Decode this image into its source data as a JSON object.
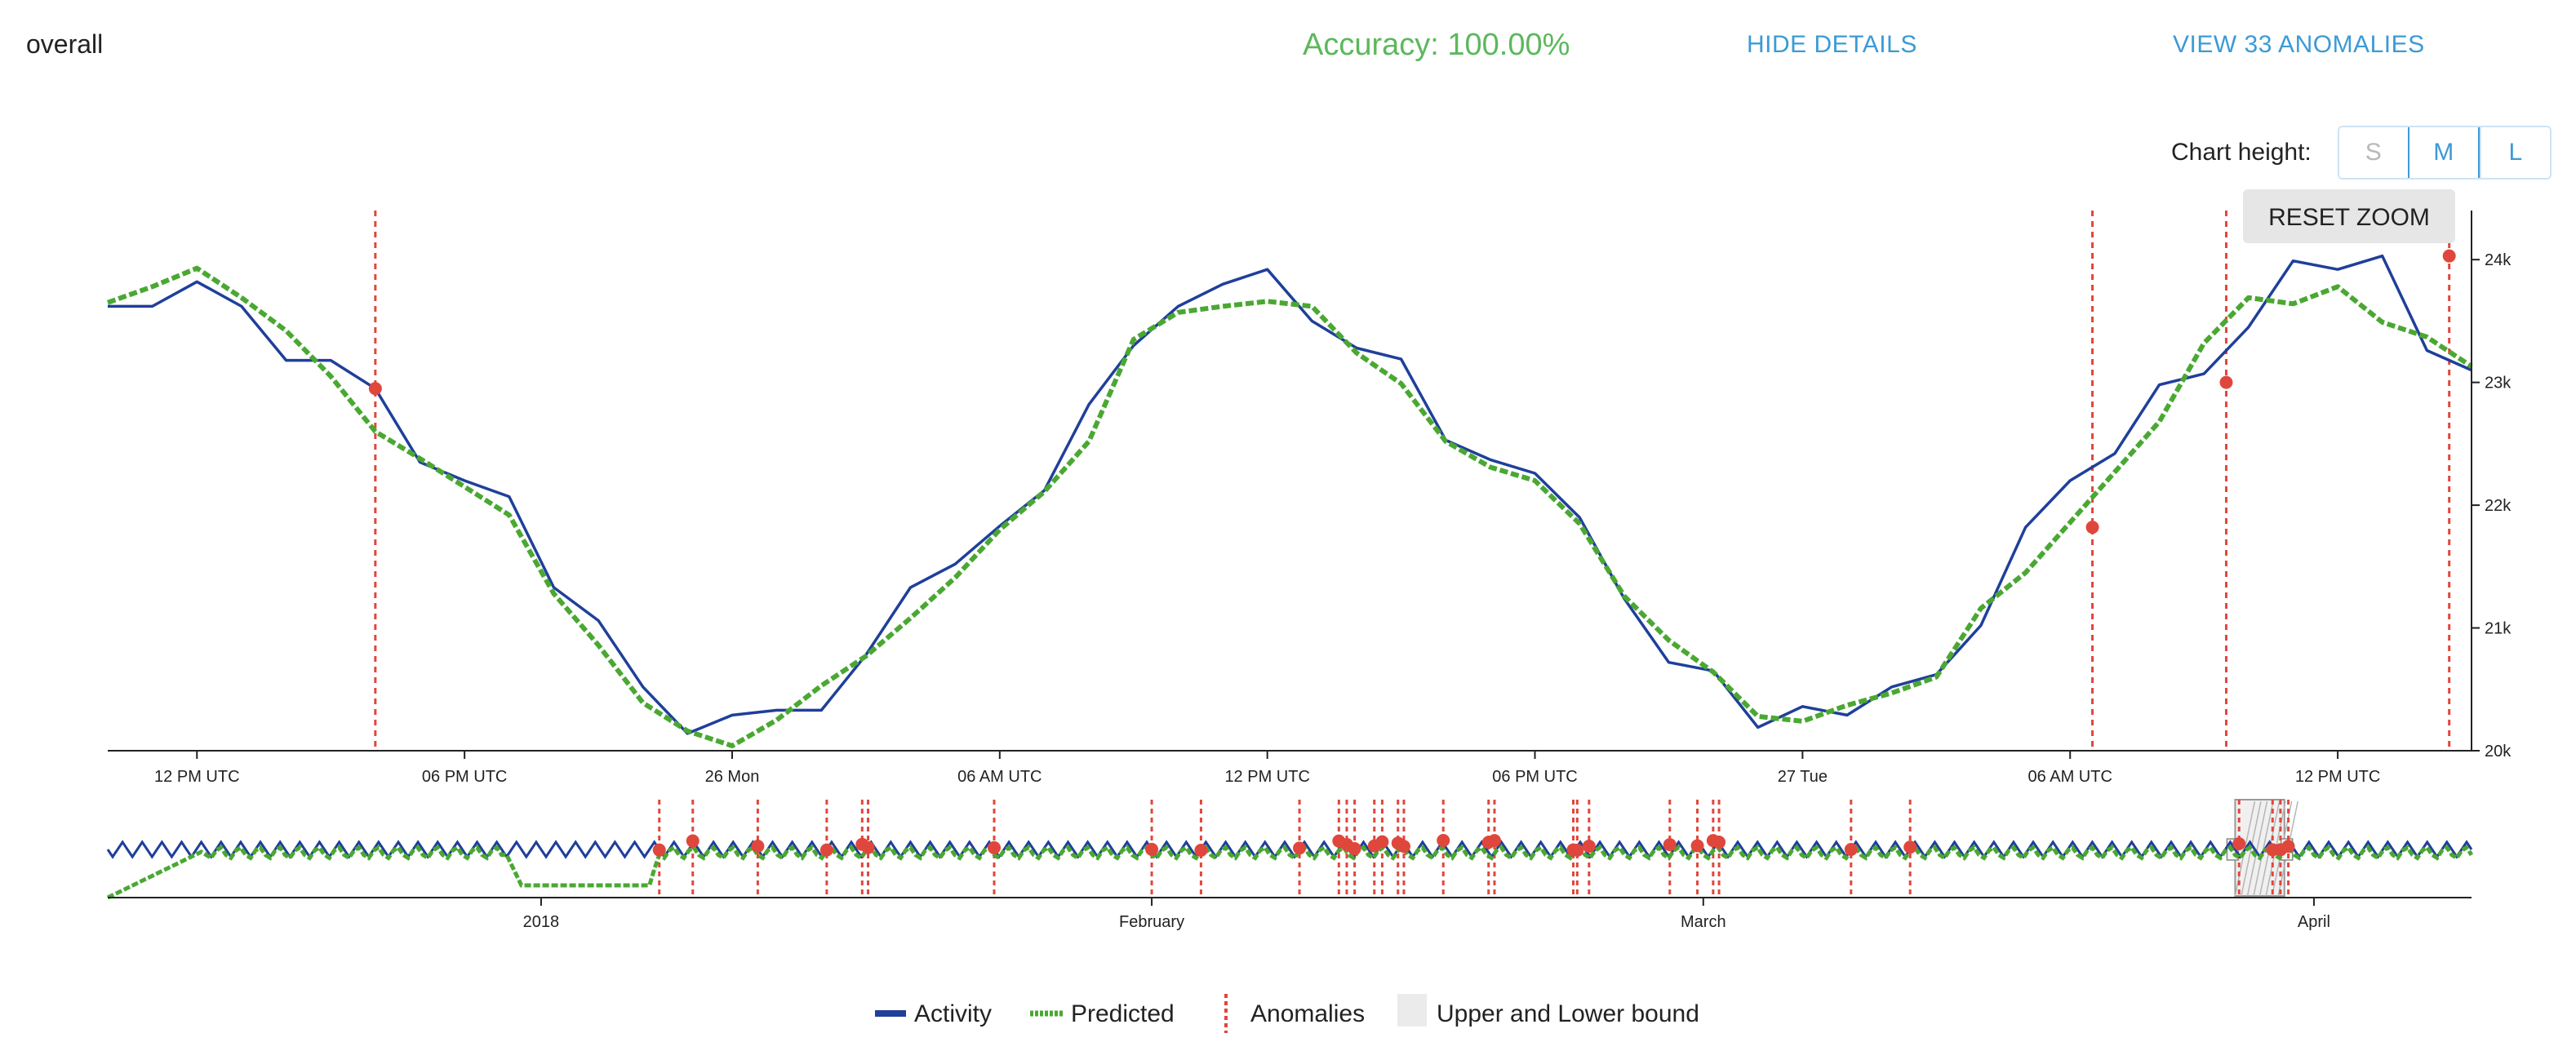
{
  "header": {
    "title": "overall",
    "accuracy": "Accuracy: 100.00%",
    "hide_details": "HIDE DETAILS",
    "view_anomalies": "VIEW 33 ANOMALIES"
  },
  "chart_height": {
    "label": "Chart height:",
    "options": [
      "S",
      "M",
      "L"
    ],
    "selected": "M"
  },
  "reset_zoom": "RESET ZOOM",
  "colors": {
    "activity": "#1f3f9a",
    "predicted": "#4aa832",
    "anomaly": "#e0473c",
    "bound": "#ebebeb"
  },
  "chart_data": {
    "type": "line",
    "x_tick_labels": [
      "12 PM UTC",
      "06 PM UTC",
      "26 Mon",
      "06 AM UTC",
      "12 PM UTC",
      "06 PM UTC",
      "27 Tue",
      "06 AM UTC",
      "12 PM UTC"
    ],
    "x_tick_hours": [
      12,
      18,
      24,
      30,
      36,
      42,
      48,
      54,
      60
    ],
    "x_range_hours": [
      10,
      63
    ],
    "y_tick_labels": [
      "20k",
      "21k",
      "22k",
      "23k",
      "24k"
    ],
    "y_ticks": [
      20000,
      21000,
      22000,
      23000,
      24000
    ],
    "ylim": [
      20000,
      24400
    ],
    "series": [
      {
        "name": "Activity",
        "x": [
          10,
          11,
          12,
          13,
          14,
          15,
          16,
          17,
          18,
          19,
          20,
          21,
          22,
          23,
          24,
          25,
          26,
          27,
          28,
          29,
          30,
          31,
          32,
          33,
          34,
          35,
          36,
          37,
          38,
          39,
          40,
          41,
          42,
          43,
          44,
          45,
          46,
          47,
          48,
          49,
          50,
          51,
          52,
          53,
          54,
          55,
          56,
          57,
          58,
          59,
          60,
          61,
          62,
          63
        ],
        "y": [
          23620,
          23620,
          23820,
          23620,
          23180,
          23180,
          22950,
          22350,
          22200,
          22070,
          21330,
          21060,
          20520,
          20140,
          20290,
          20330,
          20330,
          20780,
          21330,
          21520,
          21830,
          22120,
          22820,
          23300,
          23620,
          23800,
          23920,
          23500,
          23280,
          23190,
          22530,
          22370,
          22260,
          21900,
          21240,
          20720,
          20650,
          20190,
          20360,
          20290,
          20520,
          20620,
          21020,
          21820,
          22200,
          22420,
          22980,
          23070,
          23450,
          23990,
          23920,
          24030,
          23260,
          23100
        ]
      },
      {
        "name": "Predicted",
        "x": [
          10,
          11,
          12,
          13,
          14,
          15,
          16,
          17,
          18,
          19,
          20,
          21,
          22,
          23,
          24,
          25,
          26,
          27,
          28,
          29,
          30,
          31,
          32,
          33,
          34,
          35,
          36,
          37,
          38,
          39,
          40,
          41,
          42,
          43,
          44,
          45,
          46,
          47,
          48,
          49,
          50,
          51,
          52,
          53,
          54,
          55,
          56,
          57,
          58,
          59,
          60,
          61,
          62,
          63
        ],
        "y": [
          23650,
          23780,
          23930,
          23690,
          23420,
          23050,
          22600,
          22380,
          22150,
          21920,
          21280,
          20860,
          20390,
          20160,
          20040,
          20250,
          20530,
          20770,
          21080,
          21410,
          21800,
          22110,
          22520,
          23350,
          23570,
          23620,
          23660,
          23620,
          23240,
          22990,
          22520,
          22310,
          22200,
          21850,
          21260,
          20900,
          20640,
          20280,
          20240,
          20370,
          20470,
          20600,
          21160,
          21450,
          21860,
          22270,
          22680,
          23320,
          23690,
          23640,
          23780,
          23490,
          23370,
          23130
        ]
      }
    ],
    "anomalies": [
      {
        "x": 16,
        "y": 22950
      },
      {
        "x": 54.5,
        "y": 21820
      },
      {
        "x": 57.5,
        "y": 23000
      },
      {
        "x": 62.5,
        "y": 24030
      }
    ],
    "navigator": {
      "x_tick_labels": [
        "2018",
        "February",
        "March",
        "April"
      ],
      "x_tick_days": [
        0,
        31,
        59,
        90
      ],
      "x_range_days": [
        -22,
        98
      ],
      "window_days": [
        86,
        88.5
      ],
      "anomaly_days": [
        6,
        7.7,
        11,
        14.5,
        16.3,
        16.6,
        23,
        31,
        33.5,
        38.5,
        40.5,
        40.9,
        41.3,
        42.3,
        42.7,
        43.5,
        43.8,
        45.8,
        48.1,
        48.4,
        52.4,
        52.6,
        53.2,
        57.3,
        58.7,
        59.5,
        59.8,
        66.5,
        69.5,
        86.2,
        87.9,
        88.3,
        88.7
      ]
    },
    "legend": [
      {
        "name": "Activity",
        "style": "line"
      },
      {
        "name": "Predicted",
        "style": "dotted"
      },
      {
        "name": "Anomalies",
        "style": "vertical-dashed"
      },
      {
        "name": "Upper and Lower bound",
        "style": "box"
      }
    ],
    "legend_position": "bottom-center",
    "grid": false
  }
}
